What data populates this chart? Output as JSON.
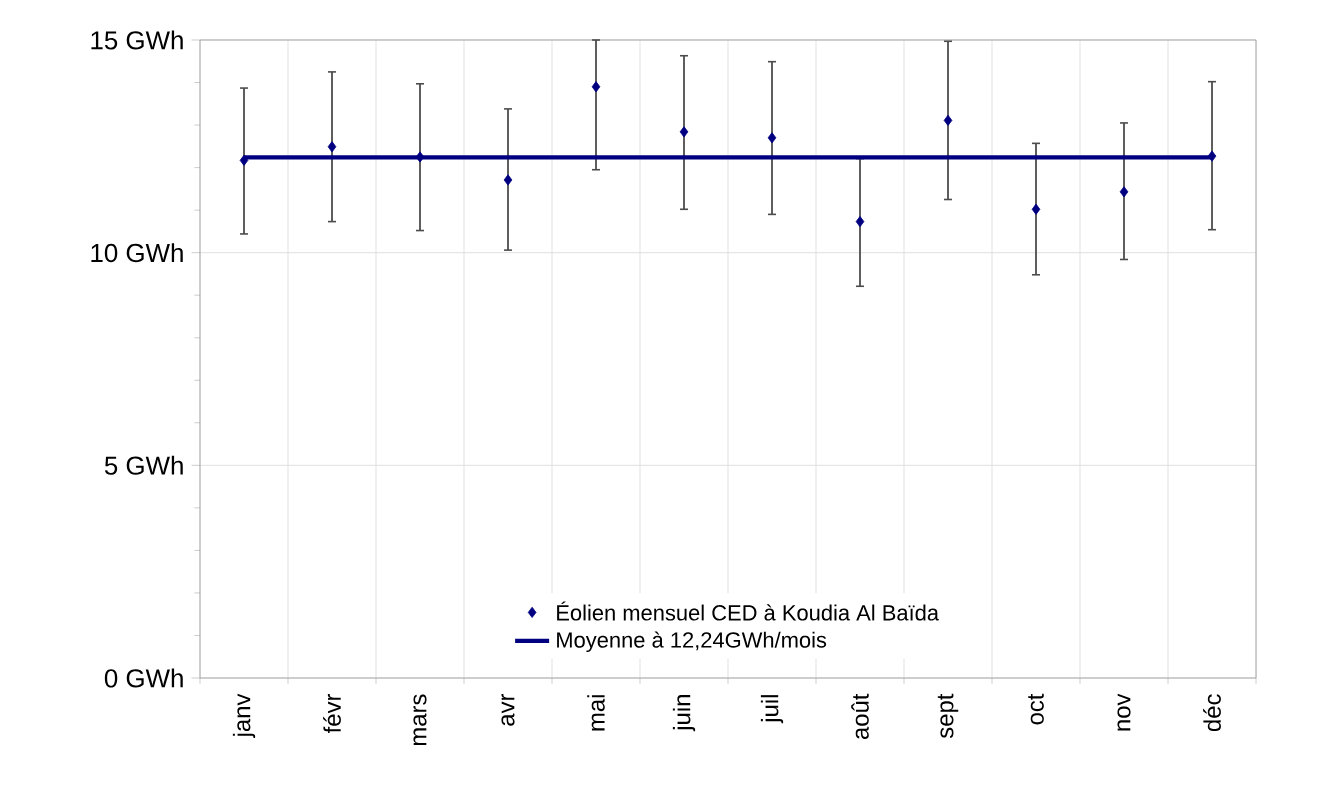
{
  "chart_data": {
    "type": "scatter",
    "categories": [
      "janv",
      "févr",
      "mars",
      "avr",
      "mai",
      "juin",
      "juil",
      "août",
      "sept",
      "oct",
      "nov",
      "déc"
    ],
    "series": [
      {
        "name": "Éolien mensuel CED à Koudia Al Baïda",
        "color": "#000080",
        "marker": "diamond",
        "values": [
          12.17,
          12.49,
          12.25,
          11.71,
          13.9,
          12.84,
          12.7,
          10.73,
          13.11,
          11.02,
          11.43,
          12.27
        ],
        "errors": [
          [
            10.44,
            13.87
          ],
          [
            10.73,
            14.25
          ],
          [
            10.52,
            13.97
          ],
          [
            10.06,
            13.38
          ],
          [
            11.95,
            15
          ],
          [
            11.02,
            14.63
          ],
          [
            10.9,
            14.49
          ],
          [
            9.21,
            12.21
          ],
          [
            11.25,
            14.97
          ],
          [
            9.48,
            12.57
          ],
          [
            9.84,
            13.05
          ],
          [
            10.54,
            14.02
          ]
        ]
      },
      {
        "name": "Moyenne à 12,24GWh/mois",
        "type": "line",
        "color": "#000080",
        "marker": "none",
        "line_style": "solid",
        "values": [
          12.24,
          12.24,
          12.24,
          12.24,
          12.24,
          12.24,
          12.24,
          12.24,
          12.24,
          12.24,
          12.24,
          12.24
        ]
      }
    ],
    "ylim": [
      0,
      15
    ],
    "yticks": [
      {
        "value": 0,
        "label": "0 GWh"
      },
      {
        "value": 1,
        "label": null
      },
      {
        "value": 2,
        "label": null
      },
      {
        "value": 3,
        "label": null
      },
      {
        "value": 4,
        "label": null
      },
      {
        "value": 5,
        "label": "5 GWh"
      },
      {
        "value": 6,
        "label": null
      },
      {
        "value": 7,
        "label": null
      },
      {
        "value": 8,
        "label": null
      },
      {
        "value": 9,
        "label": null
      },
      {
        "value": 10,
        "label": "10 GWh"
      },
      {
        "value": 11,
        "label": null
      },
      {
        "value": 12,
        "label": null
      },
      {
        "value": 13,
        "label": null
      },
      {
        "value": 14,
        "label": null
      },
      {
        "value": 15,
        "label": "15 GWh"
      }
    ],
    "grid": true,
    "legend": "bottom"
  }
}
